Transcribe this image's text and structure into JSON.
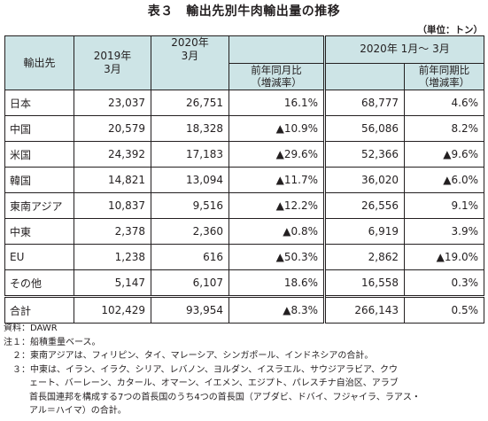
{
  "title": "表３　輸出先別牛肉輸出量の推移",
  "unit": "（単位：トン）",
  "header": {
    "destination": "輸出先",
    "col_2019": [
      "2019年",
      "3月"
    ],
    "col_2020": [
      "2020年",
      "3月"
    ],
    "col_yoy": [
      "前年同月比",
      "（増減率）"
    ],
    "period_label": "2020年 1月～ 3月",
    "col_ytd": "",
    "col_ytd_yoy": [
      "前年同期比",
      "（増減率）"
    ]
  },
  "rows": [
    {
      "name": "日本",
      "v2019": "23,037",
      "v2020": "26,751",
      "yoy": "16.1%",
      "ytd": "68,777",
      "ytd_yoy": "4.6%"
    },
    {
      "name": "中国",
      "v2019": "20,579",
      "v2020": "18,328",
      "yoy": "▲10.9%",
      "ytd": "56,086",
      "ytd_yoy": "8.2%"
    },
    {
      "name": "米国",
      "v2019": "24,392",
      "v2020": "17,183",
      "yoy": "▲29.6%",
      "ytd": "52,366",
      "ytd_yoy": "▲9.6%"
    },
    {
      "name": "韓国",
      "v2019": "14,821",
      "v2020": "13,094",
      "yoy": "▲11.7%",
      "ytd": "36,020",
      "ytd_yoy": "▲6.0%"
    },
    {
      "name": "東南アジア",
      "v2019": "10,837",
      "v2020": "9,516",
      "yoy": "▲12.2%",
      "ytd": "26,556",
      "ytd_yoy": "9.1%"
    },
    {
      "name": "中東",
      "v2019": "2,378",
      "v2020": "2,360",
      "yoy": "▲0.8%",
      "ytd": "6,919",
      "ytd_yoy": "3.9%"
    },
    {
      "name": "EU",
      "v2019": "1,238",
      "v2020": "616",
      "yoy": "▲50.3%",
      "ytd": "2,862",
      "ytd_yoy": "▲19.0%"
    },
    {
      "name": "その他",
      "v2019": "5,147",
      "v2020": "6,107",
      "yoy": "18.6%",
      "ytd": "16,558",
      "ytd_yoy": "0.3%"
    }
  ],
  "total": {
    "name": "合計",
    "v2019": "102,429",
    "v2020": "93,954",
    "yoy": "▲8.3%",
    "ytd": "266,143",
    "ytd_yoy": "0.5%"
  },
  "notes": {
    "source": "資料：DAWR",
    "n1": "注１：船積重量ベース。",
    "n2": "　２：東南アジアは、フィリピン、タイ、マレーシア、シンガポール、インドネシアの合計。",
    "n3a": "　３：中東は、イラン、イラク、シリア、レバノン、ヨルダン、イスラエル、サウジアラビア、クウ",
    "n3b": "ェート、バーレーン、カタール、オマーン、イエメン、エジプト、パレスチナ自治区、アラブ",
    "n3c": "首長国連邦を構成する7つの首長国のうち4つの首長国（アブダビ、ドバイ、フジャイラ、ラアス・",
    "n3d": "アル＝ハイマ）の合計。"
  }
}
